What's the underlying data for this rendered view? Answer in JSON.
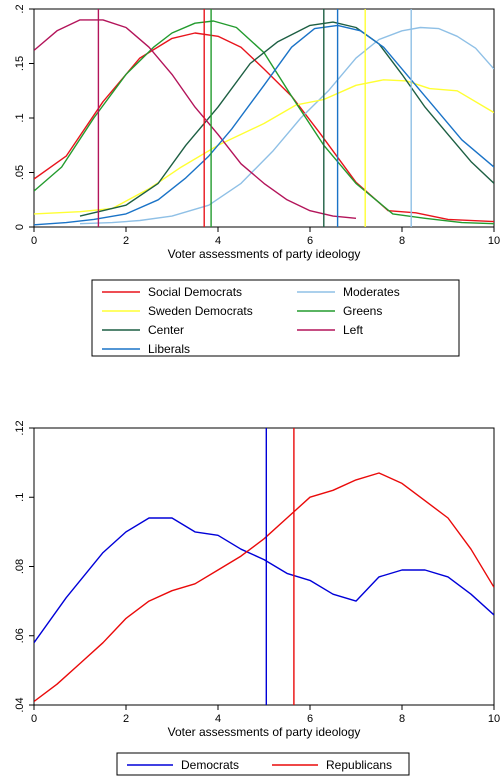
{
  "chart_data": [
    {
      "type": "line",
      "xlabel": "Voter assessments of party ideology",
      "ylabel": "",
      "xlim": [
        0,
        10
      ],
      "ylim": [
        0,
        0.2
      ],
      "xticks": [
        0,
        2,
        4,
        6,
        8,
        10
      ],
      "xtick_labels": [
        "0",
        "2",
        "4",
        "6",
        "8",
        "10"
      ],
      "yticks": [
        0,
        0.05,
        0.1,
        0.15,
        0.2
      ],
      "ytick_labels": [
        "0",
        ".05",
        ".1",
        ".15",
        ".2"
      ],
      "grid": false,
      "legend_position": "below",
      "series": [
        {
          "name": "Social Democrats",
          "color": "#e8141c",
          "mean_line": 3.7,
          "x": [
            0,
            0.7,
            1.5,
            2.3,
            3.0,
            3.5,
            4.0,
            4.5,
            5.0,
            5.6,
            6.2,
            7.0,
            7.7,
            8.3,
            9.0,
            10.0
          ],
          "y": [
            0.044,
            0.065,
            0.115,
            0.155,
            0.173,
            0.178,
            0.175,
            0.165,
            0.145,
            0.12,
            0.087,
            0.041,
            0.015,
            0.013,
            0.007,
            0.005
          ]
        },
        {
          "name": "Moderates",
          "color": "#8fc0e6",
          "mean_line": 8.2,
          "x": [
            1.0,
            1.7,
            2.3,
            3.0,
            3.8,
            4.5,
            5.2,
            5.8,
            6.4,
            7.0,
            7.5,
            8.0,
            8.4,
            8.8,
            9.2,
            9.6,
            10.0
          ],
          "y": [
            0.003,
            0.004,
            0.006,
            0.01,
            0.02,
            0.04,
            0.07,
            0.1,
            0.125,
            0.155,
            0.172,
            0.18,
            0.183,
            0.182,
            0.175,
            0.164,
            0.145
          ]
        },
        {
          "name": "Sweden Democrats",
          "color": "#ffff33",
          "mean_line": 7.2,
          "x": [
            0,
            1.0,
            1.7,
            2.5,
            3.2,
            4.0,
            5.0,
            5.7,
            6.3,
            7.0,
            7.6,
            8.1,
            8.6,
            9.2,
            10.0
          ],
          "y": [
            0.012,
            0.014,
            0.017,
            0.035,
            0.055,
            0.075,
            0.095,
            0.112,
            0.117,
            0.13,
            0.135,
            0.134,
            0.127,
            0.125,
            0.105
          ]
        },
        {
          "name": "Greens",
          "color": "#239b2e",
          "mean_line": 3.85,
          "x": [
            0,
            0.6,
            1.3,
            2.0,
            2.6,
            3.0,
            3.5,
            3.9,
            4.4,
            5.0,
            5.6,
            6.3,
            7.0,
            7.8,
            8.5,
            9.3,
            10.0
          ],
          "y": [
            0.033,
            0.055,
            0.1,
            0.14,
            0.165,
            0.178,
            0.187,
            0.189,
            0.183,
            0.16,
            0.12,
            0.075,
            0.04,
            0.012,
            0.008,
            0.004,
            0.003
          ]
        },
        {
          "name": "Center",
          "color": "#1d5f43",
          "mean_line": 6.3,
          "x": [
            1.0,
            2.0,
            2.7,
            3.3,
            4.0,
            4.7,
            5.3,
            6.0,
            6.5,
            7.0,
            7.5,
            8.0,
            8.5,
            9.0,
            9.5,
            10.0
          ],
          "y": [
            0.01,
            0.02,
            0.04,
            0.075,
            0.11,
            0.15,
            0.17,
            0.185,
            0.188,
            0.183,
            0.168,
            0.14,
            0.11,
            0.085,
            0.06,
            0.04
          ]
        },
        {
          "name": "Left",
          "color": "#b3145a",
          "mean_line": 1.4,
          "x": [
            0,
            0.5,
            1.0,
            1.5,
            2.0,
            2.5,
            3.0,
            3.5,
            4.0,
            4.5,
            5.0,
            5.5,
            6.0,
            6.5,
            7.0
          ],
          "y": [
            0.162,
            0.18,
            0.19,
            0.19,
            0.183,
            0.165,
            0.14,
            0.11,
            0.085,
            0.058,
            0.04,
            0.025,
            0.015,
            0.01,
            0.008
          ]
        },
        {
          "name": "Liberals",
          "color": "#1a73c7",
          "mean_line": 6.6,
          "x": [
            0,
            0.7,
            1.3,
            2.0,
            2.7,
            3.3,
            3.8,
            4.3,
            5.0,
            5.6,
            6.1,
            6.6,
            7.1,
            7.6,
            8.1,
            8.7,
            9.3,
            10.0
          ],
          "y": [
            0.002,
            0.004,
            0.007,
            0.012,
            0.025,
            0.045,
            0.065,
            0.09,
            0.13,
            0.165,
            0.182,
            0.185,
            0.18,
            0.165,
            0.14,
            0.11,
            0.08,
            0.055
          ]
        }
      ]
    },
    {
      "type": "line",
      "xlabel": "Voter assessments of party ideology",
      "ylabel": "",
      "xlim": [
        0,
        10
      ],
      "ylim": [
        0.04,
        0.12
      ],
      "xticks": [
        0,
        2,
        4,
        6,
        8,
        10
      ],
      "xtick_labels": [
        "0",
        "2",
        "4",
        "6",
        "8",
        "10"
      ],
      "yticks": [
        0.04,
        0.06,
        0.08,
        0.1,
        0.12
      ],
      "ytick_labels": [
        ".04",
        ".06",
        ".08",
        ".1",
        ".12"
      ],
      "grid": false,
      "legend_position": "below",
      "series": [
        {
          "name": "Democrats",
          "color": "#0000d8",
          "mean_line": 5.05,
          "x": [
            0,
            0.7,
            1.5,
            2.0,
            2.5,
            3.0,
            3.5,
            4.0,
            4.5,
            5.0,
            5.5,
            6.0,
            6.5,
            7.0,
            7.5,
            8.0,
            8.5,
            9.0,
            9.5,
            10.0
          ],
          "y": [
            0.058,
            0.071,
            0.084,
            0.09,
            0.094,
            0.094,
            0.09,
            0.089,
            0.085,
            0.082,
            0.078,
            0.076,
            0.072,
            0.07,
            0.077,
            0.079,
            0.079,
            0.077,
            0.072,
            0.066
          ]
        },
        {
          "name": "Republicans",
          "color": "#ea0a0a",
          "mean_line": 5.65,
          "x": [
            0,
            0.5,
            1.0,
            1.5,
            2.0,
            2.5,
            3.0,
            3.5,
            4.0,
            4.5,
            5.0,
            5.5,
            6.0,
            6.5,
            7.0,
            7.5,
            8.0,
            8.5,
            9.0,
            9.5,
            10.0
          ],
          "y": [
            0.041,
            0.046,
            0.052,
            0.058,
            0.065,
            0.07,
            0.073,
            0.075,
            0.079,
            0.083,
            0.088,
            0.094,
            0.1,
            0.102,
            0.105,
            0.107,
            0.104,
            0.099,
            0.094,
            0.085,
            0.074
          ]
        }
      ]
    }
  ]
}
